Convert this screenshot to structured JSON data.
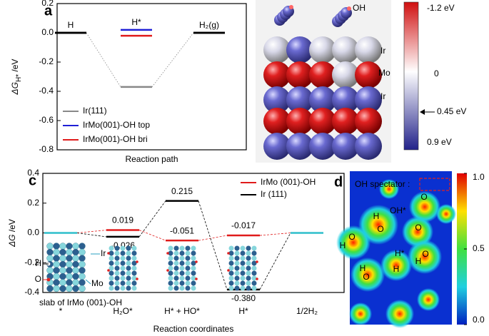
{
  "chart_data": [
    {
      "type": "levels",
      "panel": "a",
      "xlabel": "Reaction path",
      "ylabel": {
        "main": "ΔG",
        "sub": "H*",
        "unit": " /eV"
      },
      "categories": [
        "H",
        "H*",
        "H₂(g)"
      ],
      "category_labels": "top",
      "ylim": [
        -0.8,
        0.2
      ],
      "yticks": [
        0.2,
        {
          "value": 0,
          "label": "0.0"
        },
        -0.2,
        -0.4,
        -0.6,
        -0.8
      ],
      "shared_color": "#000000",
      "legend": "lower left",
      "series": [
        {
          "name": "Ir(111)",
          "color": "#888888",
          "connector": "dotted",
          "values": [
            0,
            -0.37,
            0
          ]
        },
        {
          "name": "IrMo(001)-OH top",
          "color": "#1f1fd6",
          "values": [
            0,
            0.02,
            0
          ]
        },
        {
          "name": "IrMo(001)-OH bri",
          "color": "#e01b1b",
          "values": [
            0,
            -0.02,
            0
          ]
        }
      ]
    },
    {
      "type": "levels",
      "panel": "c",
      "xlabel": "Reaction coordinates",
      "ylabel": {
        "main": "ΔG",
        "unit": " /eV"
      },
      "categories": [
        "*",
        "H₂O*",
        "H* + HO*",
        "H*",
        "1/2H₂"
      ],
      "category_labels": "axis",
      "ylim": [
        -0.4,
        0.4
      ],
      "yticks": [
        0.4,
        0.2,
        {
          "value": 0,
          "label": "0.0"
        },
        -0.2,
        -0.4
      ],
      "shared_color": "#3fc4cf",
      "legend": "upper right",
      "series": [
        {
          "name": "IrMo (001)-OH",
          "color": "#e01b1b",
          "connector": "dashed",
          "values": [
            0,
            0.019,
            -0.051,
            -0.017,
            0
          ],
          "value_labels": [
            null,
            "0.019",
            "-0.051",
            "-0.017",
            null
          ]
        },
        {
          "name": "Ir (111)",
          "color": "#000000",
          "connector": "dashed",
          "values": [
            0,
            -0.026,
            0.215,
            -0.38,
            0
          ],
          "value_labels": [
            null,
            "-0.026",
            "0.215",
            "-0.380",
            null
          ]
        }
      ],
      "annotations": [
        "slab of IrMo (001)-OH",
        "Ir",
        "H",
        "O",
        "Mo"
      ]
    }
  ],
  "panel_b": {
    "panel": "b",
    "labels": [
      "OH",
      "Ir",
      "Mo",
      "Ir"
    ],
    "colorbar_labels": [
      "-1.2 eV",
      "0",
      "0.45 eV",
      "0.9 eV"
    ]
  },
  "panel_d": {
    "panel": "d",
    "labels": [
      "OH spectator :",
      "OH*",
      "H*"
    ],
    "atoms": [
      "H",
      "O",
      "O",
      "O",
      "O",
      "H",
      "H",
      "O",
      "H",
      "O",
      "H"
    ],
    "colorbar": {
      "lim": [
        0,
        1
      ],
      "ticks": [
        {
          "value": 1,
          "label": "1.0"
        },
        0.5,
        {
          "value": 0,
          "label": "0.0"
        }
      ]
    }
  }
}
